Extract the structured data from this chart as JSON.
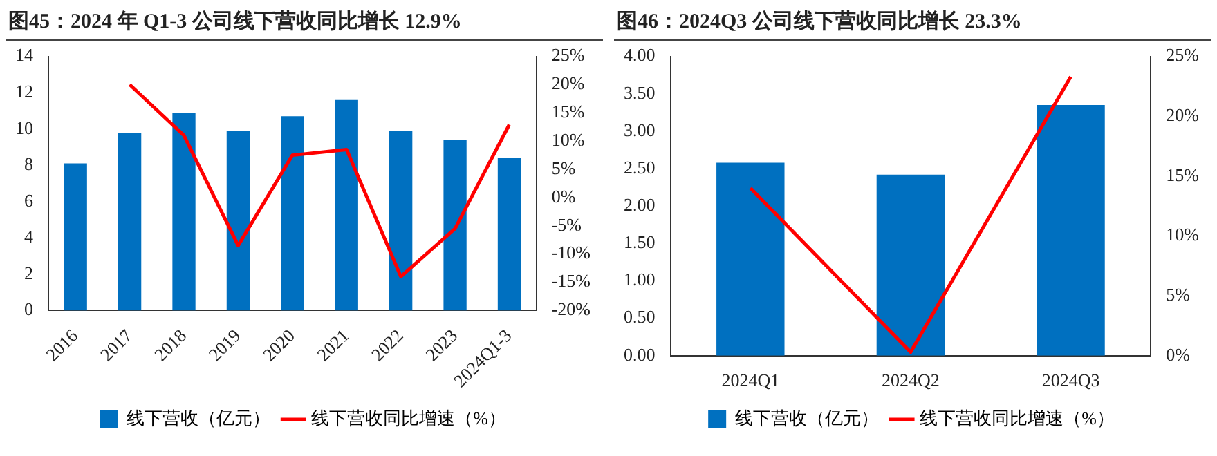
{
  "chart_data": [
    {
      "type": "bar",
      "title": "图45：2024 年 Q1-3 公司线下营收同比增长 12.9%",
      "categories": [
        "2016",
        "2017",
        "2018",
        "2019",
        "2020",
        "2021",
        "2022",
        "2023",
        "2024Q1-3"
      ],
      "series": [
        {
          "name": "线下营收（亿元）",
          "color": "#0070c0",
          "values": [
            8.1,
            9.8,
            10.9,
            9.9,
            10.7,
            11.6,
            9.9,
            9.4,
            8.4
          ]
        },
        {
          "name": "线下营收同比增速（%）",
          "type": "line",
          "axis": "y2",
          "color": "#ff0000",
          "values": [
            null,
            20,
            11,
            -8.5,
            7.5,
            8.5,
            -14,
            -5.5,
            12.9
          ]
        }
      ],
      "ylim": [
        0,
        14
      ],
      "yticks": [
        0,
        2,
        4,
        6,
        8,
        10,
        12,
        14
      ],
      "y2lim": [
        -20,
        25
      ],
      "y2ticks": [
        {
          "value": -20,
          "label": "-20%"
        },
        {
          "value": -15,
          "label": "-15%"
        },
        {
          "value": -10,
          "label": "-10%"
        },
        {
          "value": -5,
          "label": "-5%"
        },
        {
          "value": 0,
          "label": "0%"
        },
        {
          "value": 5,
          "label": "5%"
        },
        {
          "value": 10,
          "label": "10%"
        },
        {
          "value": 15,
          "label": "15%"
        },
        {
          "value": 20,
          "label": "20%"
        },
        {
          "value": 25,
          "label": "25%"
        }
      ],
      "grid": false,
      "legend": "bottom",
      "marker": "none"
    },
    {
      "type": "bar",
      "title": "图46：2024Q3 公司线下营收同比增长 23.3%",
      "categories": [
        "2024Q1",
        "2024Q2",
        "2024Q3"
      ],
      "series": [
        {
          "name": "线下营收（亿元）",
          "color": "#0070c0",
          "values": [
            2.58,
            2.42,
            3.35
          ]
        },
        {
          "name": "线下营收同比增速（%）",
          "type": "line",
          "axis": "y2",
          "color": "#ff0000",
          "values": [
            14,
            0.3,
            23.3
          ]
        }
      ],
      "ylim": [
        0,
        4
      ],
      "yticks": [
        {
          "value": 0,
          "label": "0.00"
        },
        {
          "value": 0.5,
          "label": "0.50"
        },
        {
          "value": 1,
          "label": "1.00"
        },
        {
          "value": 1.5,
          "label": "1.50"
        },
        {
          "value": 2,
          "label": "2.00"
        },
        {
          "value": 2.5,
          "label": "2.50"
        },
        {
          "value": 3,
          "label": "3.00"
        },
        {
          "value": 3.5,
          "label": "3.50"
        },
        {
          "value": 4,
          "label": "4.00"
        }
      ],
      "y2lim": [
        0,
        25
      ],
      "y2ticks": [
        {
          "value": 0,
          "label": "0%"
        },
        {
          "value": 5,
          "label": "5%"
        },
        {
          "value": 10,
          "label": "10%"
        },
        {
          "value": 15,
          "label": "15%"
        },
        {
          "value": 20,
          "label": "20%"
        },
        {
          "value": 25,
          "label": "25%"
        }
      ],
      "grid": false,
      "legend": "bottom",
      "marker": "none"
    }
  ]
}
